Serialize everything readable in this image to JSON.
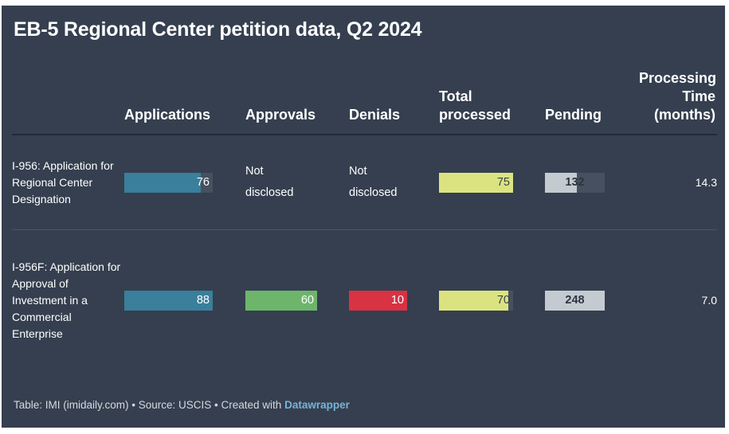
{
  "title": "EB-5 Regional Center petition data, Q2 2024",
  "columns": {
    "applications": "Applications",
    "approvals": "Approvals",
    "denials": "Denials",
    "total_line1": "Total",
    "total_line2": "processed",
    "pending": "Pending",
    "ptime_line1": "Processing",
    "ptime_line2": "Time",
    "ptime_line3": "(months)"
  },
  "not_disclosed": {
    "line1": "Not",
    "line2": "disclosed"
  },
  "colors": {
    "background": "#353f4f",
    "applications": "#3a7f9b",
    "approvals": "#6db56b",
    "denials": "#d83243",
    "total_processed": "#dbe381",
    "pending": "#c4cbd0",
    "track": "#46505f"
  },
  "chart_data": {
    "type": "table",
    "title": "EB-5 Regional Center petition data, Q2 2024",
    "columns": [
      "Applications",
      "Approvals",
      "Denials",
      "Total processed",
      "Pending",
      "Processing Time (months)"
    ],
    "rows": [
      {
        "label": "I-956: Application for Regional Center Designation",
        "applications": 76,
        "approvals": "Not disclosed",
        "denials": "Not disclosed",
        "total_processed": 75,
        "pending": 132,
        "processing_time": "14.3"
      },
      {
        "label": "I-956F: Application for Approval of Investment in a Commercial Enterprise",
        "applications": 88,
        "approvals": 60,
        "denials": 10,
        "total_processed": 70,
        "pending": 248,
        "processing_time": "7.0"
      }
    ],
    "bar_max": {
      "applications": 88,
      "approvals": 60,
      "denials": 10,
      "total_processed": 75,
      "pending": 248
    }
  },
  "footer": {
    "text": "Table: IMI (imidaily.com) • Source: USCIS • Created with",
    "link": "Datawrapper"
  }
}
